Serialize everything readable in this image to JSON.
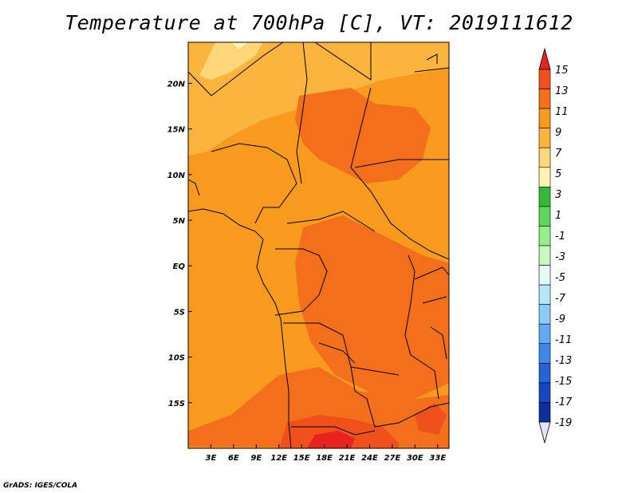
{
  "title": "Temperature at 700hPa [C], VT: 2019111612",
  "credit": "GrADS: IGES/COLA",
  "map": {
    "lon_range": [
      0,
      34.5
    ],
    "lat_range": [
      -20,
      24.5
    ],
    "lon_ticks": [
      {
        "value": 3,
        "label": "3E"
      },
      {
        "value": 6,
        "label": "6E"
      },
      {
        "value": 9,
        "label": "9E"
      },
      {
        "value": 12,
        "label": "12E"
      },
      {
        "value": 15,
        "label": "15E"
      },
      {
        "value": 18,
        "label": "18E"
      },
      {
        "value": 21,
        "label": "21E"
      },
      {
        "value": 24,
        "label": "24E"
      },
      {
        "value": 27,
        "label": "27E"
      },
      {
        "value": 30,
        "label": "30E"
      },
      {
        "value": 33,
        "label": "33E"
      }
    ],
    "lat_ticks": [
      {
        "value": 20,
        "label": "20N"
      },
      {
        "value": 15,
        "label": "15N"
      },
      {
        "value": 10,
        "label": "10N"
      },
      {
        "value": 5,
        "label": "5N"
      },
      {
        "value": 0,
        "label": "EQ"
      },
      {
        "value": -5,
        "label": "5S"
      },
      {
        "value": -10,
        "label": "10S"
      },
      {
        "value": -15,
        "label": "15S"
      }
    ]
  },
  "colorbar": {
    "labels": [
      "15",
      "13",
      "11",
      "9",
      "7",
      "5",
      "3",
      "1",
      "-1",
      "-3",
      "-5",
      "-7",
      "-9",
      "-11",
      "-13",
      "-15",
      "-17",
      "-19"
    ],
    "colors": [
      "#e8231e",
      "#f0501c",
      "#f46f1c",
      "#f89a1e",
      "#fbb43d",
      "#fdd77a",
      "#fff3b3",
      "#36b93a",
      "#5fd55b",
      "#97ed8c",
      "#c9f7c0",
      "#e5faf4",
      "#b7e6fb",
      "#8dcbf7",
      "#61a9f2",
      "#3e88e8",
      "#2463d8",
      "#1647bf",
      "#0e2f9b",
      "#0a1870"
    ]
  }
}
